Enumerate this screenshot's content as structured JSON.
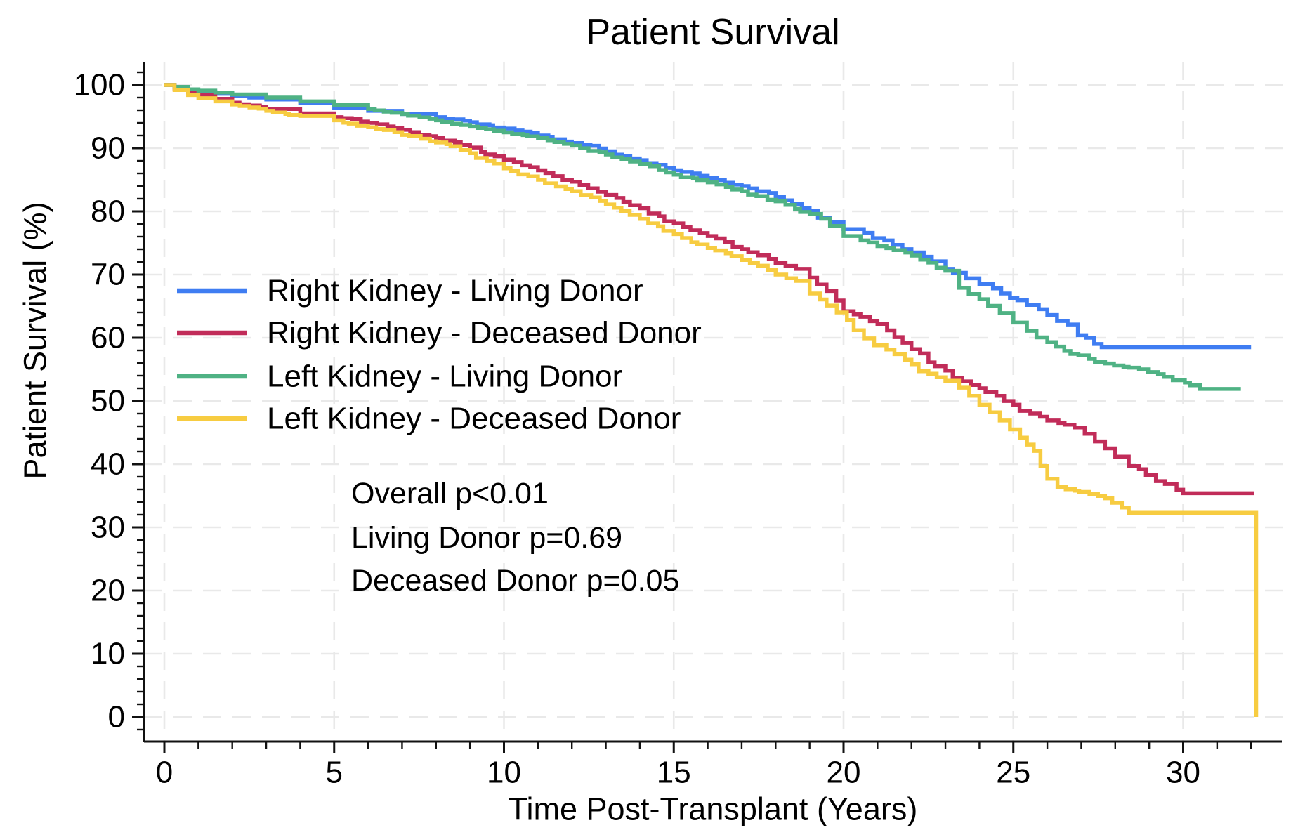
{
  "title": "Patient Survival",
  "x_axis": {
    "label": "Time Post-Transplant (Years)",
    "major_ticks": [
      0,
      5,
      10,
      15,
      20,
      25,
      30
    ],
    "minor_step": 1,
    "range": [
      0,
      33
    ]
  },
  "y_axis": {
    "label": "Patient Survival (%)",
    "major_ticks": [
      0,
      10,
      20,
      30,
      40,
      50,
      60,
      70,
      80,
      90,
      100
    ],
    "minor_step": 2,
    "range": [
      0,
      100
    ]
  },
  "legend": [
    {
      "label": "Right Kidney - Living Donor",
      "color": "#3f7df2"
    },
    {
      "label": "Right Kidney - Deceased Donor",
      "color": "#c12c59"
    },
    {
      "label": "Left Kidney - Living Donor",
      "color": "#4fb284"
    },
    {
      "label": "Left Kidney - Deceased Donor",
      "color": "#f7cc41"
    }
  ],
  "annotations": [
    "Overall p<0.01",
    "Living Donor p=0.69",
    "Deceased Donor p=0.05"
  ],
  "chart_data": {
    "type": "line",
    "subtype": "kaplan-meier-step",
    "title": "Patient Survival",
    "xlabel": "Time Post-Transplant (Years)",
    "ylabel": "Patient Survival (%)",
    "xlim": [
      0,
      33
    ],
    "ylim": [
      0,
      100
    ],
    "grid": true,
    "grid_style": "dashed-light-gray",
    "legend_position": "upper-left-inside",
    "series": [
      {
        "name": "Right Kidney - Living Donor",
        "color": "#3f7df2",
        "points": [
          [
            0,
            100
          ],
          [
            0.3,
            99.6
          ],
          [
            0.7,
            99.1
          ],
          [
            1,
            98.9
          ],
          [
            1.5,
            98.6
          ],
          [
            2,
            98.3
          ],
          [
            2.5,
            98
          ],
          [
            3,
            97.7
          ],
          [
            4,
            97.1
          ],
          [
            5,
            96.4
          ],
          [
            6,
            95.9
          ],
          [
            7,
            95.4
          ],
          [
            8,
            94.9
          ],
          [
            9,
            94.1
          ],
          [
            10,
            93.1
          ],
          [
            11,
            92
          ],
          [
            12,
            90.8
          ],
          [
            13,
            89.5
          ],
          [
            14,
            88.1
          ],
          [
            15,
            86.5
          ],
          [
            16,
            85.3
          ],
          [
            17,
            84
          ],
          [
            18,
            82.3
          ],
          [
            19,
            80.1
          ],
          [
            19.6,
            78.3
          ],
          [
            20,
            77.2
          ],
          [
            20.6,
            76.6
          ],
          [
            21.2,
            75.4
          ],
          [
            22,
            73.5
          ],
          [
            22.6,
            72.1
          ],
          [
            23,
            70.9
          ],
          [
            23.6,
            69.4
          ],
          [
            24,
            68.5
          ],
          [
            24.4,
            67.8
          ],
          [
            24.9,
            66.3
          ],
          [
            25.4,
            65.2
          ],
          [
            26,
            63.6
          ],
          [
            26.6,
            62.1
          ],
          [
            26.9,
            60.4
          ],
          [
            27.6,
            58.5
          ],
          [
            32,
            58.5
          ]
        ]
      },
      {
        "name": "Right Kidney - Deceased Donor",
        "color": "#c12c59",
        "points": [
          [
            0,
            100
          ],
          [
            0.3,
            99.4
          ],
          [
            0.7,
            98.8
          ],
          [
            1,
            98.4
          ],
          [
            1.5,
            97.8
          ],
          [
            2,
            97.2
          ],
          [
            3,
            96.2
          ],
          [
            4,
            95.5
          ],
          [
            5,
            94.9
          ],
          [
            6,
            94
          ],
          [
            7,
            92.9
          ],
          [
            8,
            91.6
          ],
          [
            9,
            90.1
          ],
          [
            10,
            88.2
          ],
          [
            11,
            86.5
          ],
          [
            12,
            84.7
          ],
          [
            13,
            82.6
          ],
          [
            14,
            80.5
          ],
          [
            15,
            78.1
          ],
          [
            16,
            76.1
          ],
          [
            17,
            74
          ],
          [
            18,
            71.8
          ],
          [
            18.6,
            70.9
          ],
          [
            19,
            69.5
          ],
          [
            19.5,
            67.4
          ],
          [
            20,
            64.2
          ],
          [
            20.3,
            63.7
          ],
          [
            21,
            62.2
          ],
          [
            21.5,
            60.1
          ],
          [
            22,
            58.2
          ],
          [
            22.5,
            56.1
          ],
          [
            23,
            54.8
          ],
          [
            23.5,
            53.1
          ],
          [
            24,
            52
          ],
          [
            24.5,
            50.8
          ],
          [
            25,
            49.4
          ],
          [
            25.5,
            48
          ],
          [
            26,
            46.9
          ],
          [
            26.8,
            45.8
          ],
          [
            27.1,
            44.8
          ],
          [
            27.4,
            43.6
          ],
          [
            27.7,
            42.5
          ],
          [
            28,
            41.2
          ],
          [
            28.4,
            39.7
          ],
          [
            30,
            35.4
          ],
          [
            32.1,
            35.4
          ]
        ]
      },
      {
        "name": "Left Kidney - Living Donor",
        "color": "#4fb284",
        "points": [
          [
            0,
            100
          ],
          [
            0.3,
            99.7
          ],
          [
            0.7,
            99.3
          ],
          [
            1,
            99.1
          ],
          [
            1.5,
            98.8
          ],
          [
            2,
            98.5
          ],
          [
            3,
            98
          ],
          [
            4,
            97.4
          ],
          [
            5,
            96.8
          ],
          [
            6,
            96.2
          ],
          [
            7,
            95.4
          ],
          [
            8,
            94.4
          ],
          [
            9,
            93.4
          ],
          [
            10,
            92.5
          ],
          [
            11,
            91.6
          ],
          [
            12,
            90.4
          ],
          [
            13,
            89
          ],
          [
            14,
            87.5
          ],
          [
            15,
            85.8
          ],
          [
            16,
            84.6
          ],
          [
            17,
            83.2
          ],
          [
            18,
            81.6
          ],
          [
            19,
            79.6
          ],
          [
            19.6,
            77.7
          ],
          [
            20,
            76.1
          ],
          [
            20.5,
            75.4
          ],
          [
            21,
            74.5
          ],
          [
            22,
            73
          ],
          [
            22.5,
            71.9
          ],
          [
            23,
            70.6
          ],
          [
            23.4,
            67.9
          ],
          [
            24,
            66.1
          ],
          [
            24.6,
            63.9
          ],
          [
            25,
            62.4
          ],
          [
            25.4,
            61.1
          ],
          [
            26,
            59.3
          ],
          [
            26.5,
            57.9
          ],
          [
            27.4,
            56.2
          ],
          [
            28.7,
            55
          ],
          [
            30.5,
            51.9
          ],
          [
            31.7,
            51.9
          ]
        ]
      },
      {
        "name": "Left Kidney - Deceased Donor",
        "color": "#f7cc41",
        "points": [
          [
            0,
            100
          ],
          [
            0.3,
            99.2
          ],
          [
            0.7,
            98.4
          ],
          [
            1,
            97.9
          ],
          [
            1.5,
            97.4
          ],
          [
            2,
            96.9
          ],
          [
            3,
            95.9
          ],
          [
            4,
            95.1
          ],
          [
            5,
            94.4
          ],
          [
            6,
            93.3
          ],
          [
            7,
            92.1
          ],
          [
            8,
            90.9
          ],
          [
            9,
            89.2
          ],
          [
            10,
            86.8
          ],
          [
            11,
            85
          ],
          [
            12,
            83.2
          ],
          [
            13,
            81.1
          ],
          [
            14,
            78.8
          ],
          [
            15,
            76.4
          ],
          [
            16,
            74.2
          ],
          [
            17,
            72.3
          ],
          [
            18,
            70
          ],
          [
            18.6,
            69
          ],
          [
            19,
            67
          ],
          [
            19.5,
            65.1
          ],
          [
            19.8,
            64
          ],
          [
            20.1,
            62.8
          ],
          [
            20.3,
            61.2
          ],
          [
            20.6,
            59.9
          ],
          [
            20.9,
            58.8
          ],
          [
            21.5,
            57.4
          ],
          [
            22,
            55.8
          ],
          [
            22.5,
            54.3
          ],
          [
            23,
            53.2
          ],
          [
            23.4,
            52.1
          ],
          [
            23.7,
            50.8
          ],
          [
            24,
            49.4
          ],
          [
            24.3,
            48.2
          ],
          [
            24.6,
            46.9
          ],
          [
            24.9,
            45.5
          ],
          [
            25.2,
            44.2
          ],
          [
            25.4,
            43.1
          ],
          [
            25.6,
            42.1
          ],
          [
            25.8,
            39.7
          ],
          [
            26,
            37.7
          ],
          [
            26.3,
            36.4
          ],
          [
            27.7,
            34.6
          ],
          [
            28.4,
            32.3
          ],
          [
            32.15,
            32.3
          ],
          [
            32.15,
            0
          ]
        ]
      }
    ],
    "annotations": [
      "Overall p<0.01",
      "Living Donor p=0.69",
      "Deceased Donor p=0.05"
    ]
  }
}
